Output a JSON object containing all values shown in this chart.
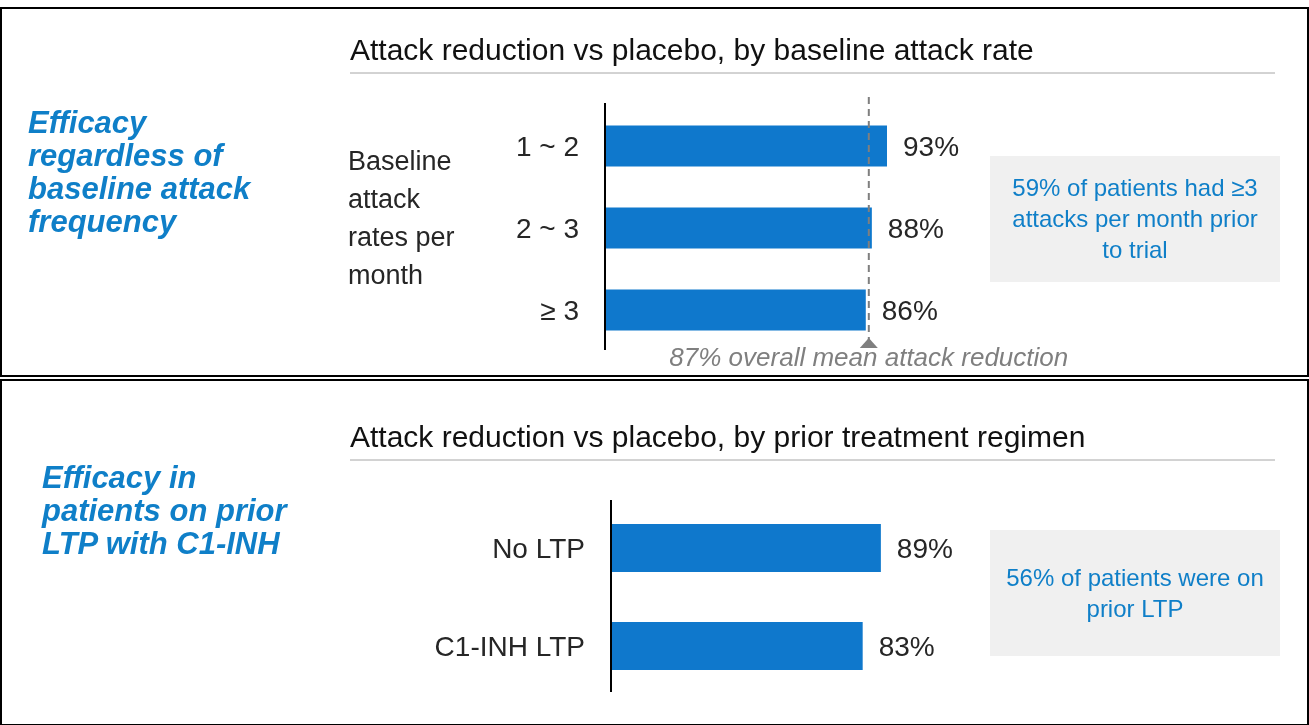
{
  "chart_data": [
    {
      "type": "bar",
      "orientation": "horizontal",
      "title": "Attack reduction vs placebo, by baseline attack rate",
      "ylabel": "Baseline attack rates per month",
      "categories": [
        "1 ~ 2",
        "2 ~ 3",
        "≥ 3"
      ],
      "values": [
        93,
        88,
        86
      ],
      "value_labels": [
        "93%",
        "88%",
        "86%"
      ],
      "color": "#0f78cc",
      "ref_lines": [
        {
          "axis": "x",
          "value": 87,
          "label": "87% overall mean attack reduction",
          "color": "#7f7f7f",
          "line_style": "dashed"
        }
      ],
      "annotations": [
        "Efficacy regardless of baseline attack frequency",
        "59% of patients had ≥3 attacks per month prior to trial"
      ]
    },
    {
      "type": "bar",
      "orientation": "horizontal",
      "title": "Attack reduction vs placebo, by prior treatment regimen",
      "categories": [
        "No LTP",
        "C1-INH LTP"
      ],
      "values": [
        89,
        83
      ],
      "value_labels": [
        "89%",
        "83%"
      ],
      "color": "#0f78cc",
      "annotations": [
        "Efficacy in patients on prior LTP with C1-INH",
        "56% of patients were on prior LTP"
      ]
    }
  ]
}
